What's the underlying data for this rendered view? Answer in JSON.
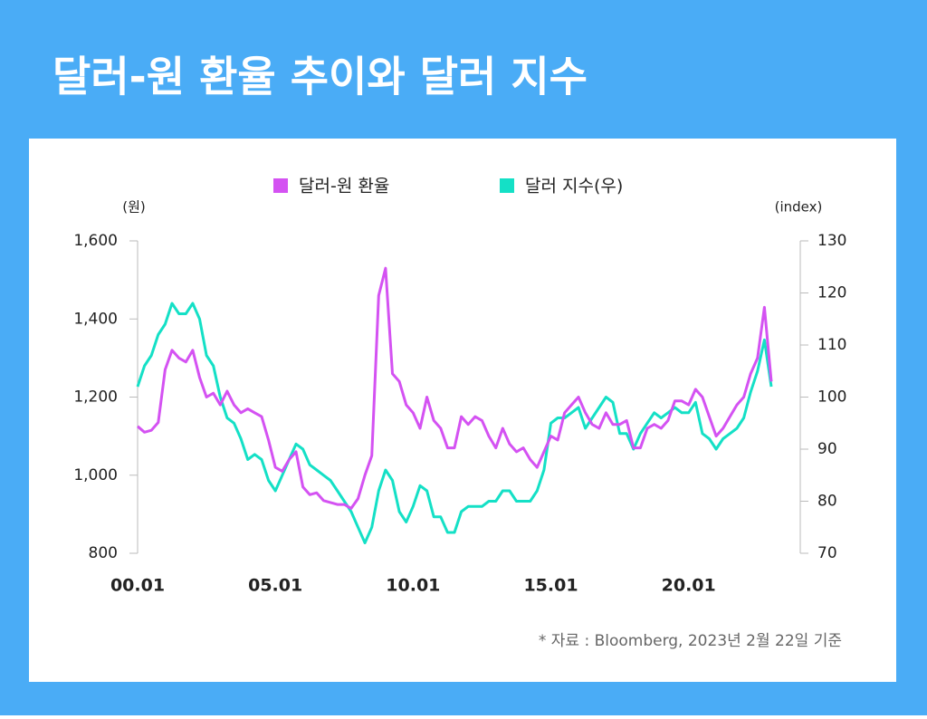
{
  "chart_data": {
    "type": "line",
    "title": "달러-원 환율 추이와 달러 지수",
    "y_label": "(원)",
    "y2_label": "(index)",
    "source": "* 자료 : Bloomberg, 2023년 2월 22일 기준",
    "x": [
      "2000-01",
      "2000-04",
      "2000-07",
      "2000-10",
      "2001-01",
      "2001-04",
      "2001-07",
      "2001-10",
      "2002-01",
      "2002-04",
      "2002-07",
      "2002-10",
      "2003-01",
      "2003-04",
      "2003-07",
      "2003-10",
      "2004-01",
      "2004-04",
      "2004-07",
      "2004-10",
      "2005-01",
      "2005-04",
      "2005-07",
      "2005-10",
      "2006-01",
      "2006-04",
      "2006-07",
      "2006-10",
      "2007-01",
      "2007-04",
      "2007-07",
      "2007-10",
      "2008-01",
      "2008-04",
      "2008-07",
      "2008-10",
      "2009-01",
      "2009-04",
      "2009-07",
      "2009-10",
      "2010-01",
      "2010-04",
      "2010-07",
      "2010-10",
      "2011-01",
      "2011-04",
      "2011-07",
      "2011-10",
      "2012-01",
      "2012-04",
      "2012-07",
      "2012-10",
      "2013-01",
      "2013-04",
      "2013-07",
      "2013-10",
      "2014-01",
      "2014-04",
      "2014-07",
      "2014-10",
      "2015-01",
      "2015-04",
      "2015-07",
      "2015-10",
      "2016-01",
      "2016-04",
      "2016-07",
      "2016-10",
      "2017-01",
      "2017-04",
      "2017-07",
      "2017-10",
      "2018-01",
      "2018-04",
      "2018-07",
      "2018-10",
      "2019-01",
      "2019-04",
      "2019-07",
      "2019-10",
      "2020-01",
      "2020-04",
      "2020-07",
      "2020-10",
      "2021-01",
      "2021-04",
      "2021-07",
      "2021-10",
      "2022-01",
      "2022-04",
      "2022-07",
      "2022-10",
      "2023-01"
    ],
    "series": [
      {
        "name": "달러-원 환율",
        "color": "#d452f2",
        "axis": "y",
        "values": [
          1125,
          1110,
          1115,
          1135,
          1270,
          1320,
          1300,
          1290,
          1320,
          1250,
          1200,
          1210,
          1180,
          1215,
          1180,
          1160,
          1170,
          1160,
          1150,
          1090,
          1020,
          1010,
          1040,
          1060,
          970,
          950,
          955,
          935,
          930,
          925,
          925,
          915,
          940,
          1000,
          1050,
          1460,
          1530,
          1260,
          1240,
          1180,
          1160,
          1120,
          1200,
          1140,
          1120,
          1070,
          1070,
          1150,
          1130,
          1150,
          1140,
          1100,
          1070,
          1120,
          1080,
          1060,
          1070,
          1040,
          1020,
          1060,
          1100,
          1090,
          1160,
          1180,
          1200,
          1160,
          1130,
          1120,
          1160,
          1130,
          1130,
          1140,
          1070,
          1070,
          1120,
          1130,
          1120,
          1140,
          1190,
          1190,
          1180,
          1220,
          1200,
          1150,
          1100,
          1120,
          1150,
          1180,
          1200,
          1260,
          1300,
          1430,
          1240
        ]
      },
      {
        "name": "달러 지수(우)",
        "color": "#14e0c6",
        "axis": "y2",
        "values": [
          102,
          106,
          108,
          112,
          114,
          118,
          116,
          116,
          118,
          115,
          108,
          106,
          100,
          96,
          95,
          92,
          88,
          89,
          88,
          84,
          82,
          85,
          88,
          91,
          90,
          87,
          86,
          85,
          84,
          82,
          80,
          78,
          75,
          72,
          75,
          82,
          86,
          84,
          78,
          76,
          79,
          83,
          82,
          77,
          77,
          74,
          74,
          78,
          79,
          79,
          79,
          80,
          80,
          82,
          82,
          80,
          80,
          80,
          82,
          86,
          95,
          96,
          96,
          97,
          98,
          94,
          96,
          98,
          100,
          99,
          93,
          93,
          90,
          93,
          95,
          97,
          96,
          97,
          98,
          97,
          97,
          99,
          93,
          92,
          90,
          92,
          93,
          94,
          96,
          101,
          105,
          111,
          102
        ]
      }
    ],
    "xlim": [
      "2000-01",
      "2023-01"
    ],
    "xticks": [
      {
        "value": "2000-01",
        "label": "00.01"
      },
      {
        "value": "2005-01",
        "label": "05.01"
      },
      {
        "value": "2010-01",
        "label": "10.01"
      },
      {
        "value": "2015-01",
        "label": "15.01"
      },
      {
        "value": "2020-01",
        "label": "20.01"
      }
    ],
    "ylim": [
      800,
      1600
    ],
    "yticks": [
      800,
      {
        "value": 1000,
        "label": "1,000"
      },
      {
        "value": 1200,
        "label": "1,200"
      },
      {
        "value": 1400,
        "label": "1,400"
      },
      {
        "value": 1600,
        "label": "1,600"
      }
    ],
    "y2lim": [
      70,
      130
    ],
    "y2ticks": [
      70,
      80,
      90,
      100,
      110,
      120,
      130
    ]
  }
}
